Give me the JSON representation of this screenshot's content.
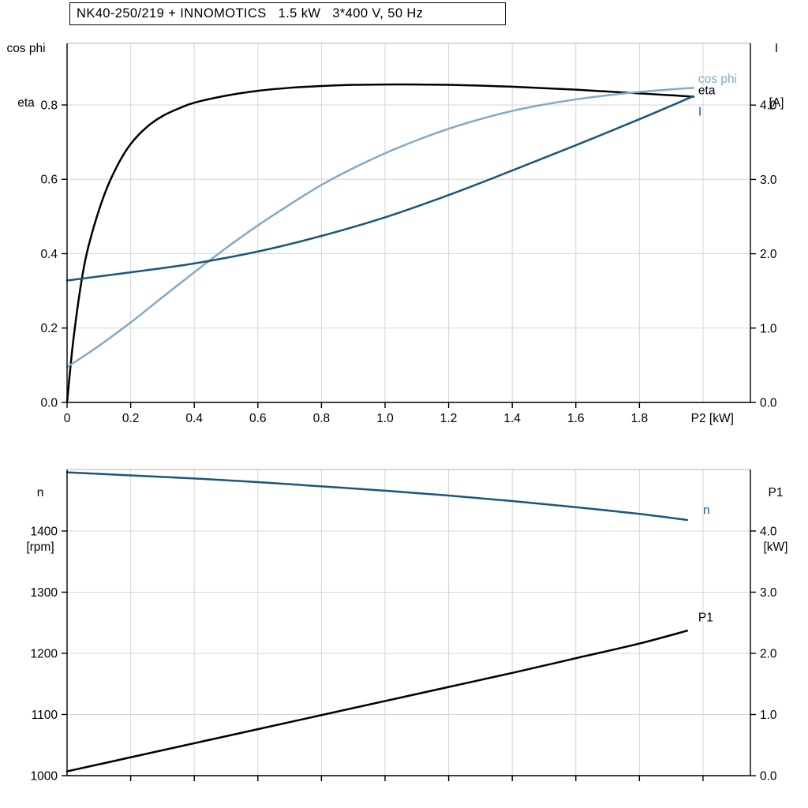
{
  "title_box": {
    "text": "NK40-250/219 + INNOMOTICS   1.5 kW   3*400 V, 50 Hz"
  },
  "axis_corner_labels": {
    "top_left_line1": "cos phi",
    "top_left_line2": "eta",
    "top_right_line1": "I",
    "top_right_line2": "[A]",
    "bottom_left_line1": "n",
    "bottom_left_line2": "[rpm]",
    "bottom_right_line1": "P1",
    "bottom_right_line2": "[kW]"
  },
  "colors": {
    "curve_black": "#000000",
    "curve_dark_blue": "#1a567f",
    "curve_light_blue": "#83a9c7",
    "grid": "#d6d6d6",
    "axis": "#000000",
    "plot_border": "#b3b3b3",
    "background": "#ffffff"
  },
  "chart_data": [
    {
      "id": "motor-electrical",
      "type": "line",
      "title": "NK40-250/219 + INNOMOTICS   1.5 kW   3*400 V, 50 Hz",
      "x_axis": {
        "label": "P2 [kW]",
        "label_at": 1.962,
        "range": [
          0,
          2.149
        ],
        "ticks": [
          0,
          0.2,
          0.4,
          0.6,
          0.8,
          1.0,
          1.2,
          1.4,
          1.6,
          1.8
        ],
        "tick_labels": [
          "0",
          "0.2",
          "0.4",
          "0.6",
          "0.8",
          "1.0",
          "1.2",
          "1.4",
          "1.6",
          "1.8"
        ],
        "grid": [
          0.2,
          0.4,
          0.6,
          0.8,
          1.0,
          1.2,
          1.4,
          1.6,
          1.8,
          2.0
        ]
      },
      "left_axis": {
        "label": "cos phi / eta",
        "range": [
          0,
          0.9655
        ],
        "ticks": [
          0,
          0.2,
          0.4,
          0.6,
          0.8
        ],
        "tick_labels": [
          "0.0",
          "0.2",
          "0.4",
          "0.6",
          "0.8"
        ]
      },
      "right_axis": {
        "label": "I [A]",
        "range": [
          0,
          4.83
        ],
        "ticks": [
          0,
          1,
          2,
          3,
          4
        ],
        "tick_labels": [
          "0.0",
          "1.0",
          "2.0",
          "3.0",
          "4.0"
        ]
      },
      "series": [
        {
          "key": "eta",
          "name": "eta",
          "axis": "left",
          "color_key": "curve_black",
          "label_at": [
            1.985,
            0.829
          ],
          "points": [
            [
              0,
              0
            ],
            [
              0.02,
              0.17
            ],
            [
              0.05,
              0.35
            ],
            [
              0.08,
              0.46
            ],
            [
              0.12,
              0.565
            ],
            [
              0.16,
              0.64
            ],
            [
              0.2,
              0.695
            ],
            [
              0.25,
              0.74
            ],
            [
              0.3,
              0.77
            ],
            [
              0.35,
              0.79
            ],
            [
              0.4,
              0.806
            ],
            [
              0.5,
              0.825
            ],
            [
              0.6,
              0.838
            ],
            [
              0.7,
              0.846
            ],
            [
              0.8,
              0.851
            ],
            [
              0.9,
              0.854
            ],
            [
              1.0,
              0.855
            ],
            [
              1.1,
              0.855
            ],
            [
              1.2,
              0.854
            ],
            [
              1.3,
              0.852
            ],
            [
              1.4,
              0.849
            ],
            [
              1.5,
              0.845
            ],
            [
              1.6,
              0.841
            ],
            [
              1.7,
              0.836
            ],
            [
              1.8,
              0.831
            ],
            [
              1.9,
              0.826
            ],
            [
              1.97,
              0.822
            ]
          ]
        },
        {
          "key": "cos-phi",
          "name": "cos phi",
          "axis": "left",
          "color_key": "curve_light_blue",
          "label_at": [
            1.985,
            0.859
          ],
          "points": [
            [
              0,
              0.095
            ],
            [
              0.1,
              0.152
            ],
            [
              0.2,
              0.215
            ],
            [
              0.3,
              0.283
            ],
            [
              0.4,
              0.35
            ],
            [
              0.5,
              0.415
            ],
            [
              0.6,
              0.476
            ],
            [
              0.7,
              0.532
            ],
            [
              0.8,
              0.585
            ],
            [
              0.9,
              0.63
            ],
            [
              1.0,
              0.67
            ],
            [
              1.1,
              0.705
            ],
            [
              1.2,
              0.736
            ],
            [
              1.3,
              0.762
            ],
            [
              1.4,
              0.784
            ],
            [
              1.5,
              0.801
            ],
            [
              1.6,
              0.815
            ],
            [
              1.7,
              0.826
            ],
            [
              1.8,
              0.835
            ],
            [
              1.9,
              0.842
            ],
            [
              1.97,
              0.846
            ]
          ]
        },
        {
          "key": "current",
          "name": "I",
          "axis": "right",
          "color_key": "curve_dark_blue",
          "label_at": [
            1.985,
            3.86
          ],
          "points": [
            [
              0,
              1.64
            ],
            [
              0.2,
              1.75
            ],
            [
              0.4,
              1.87
            ],
            [
              0.6,
              2.03
            ],
            [
              0.8,
              2.24
            ],
            [
              1.0,
              2.49
            ],
            [
              1.2,
              2.79
            ],
            [
              1.4,
              3.12
            ],
            [
              1.6,
              3.46
            ],
            [
              1.8,
              3.81
            ],
            [
              1.97,
              4.12
            ]
          ]
        }
      ]
    },
    {
      "id": "motor-mechanical",
      "type": "line",
      "title": "",
      "x_axis": {
        "label": "",
        "label_at": 1.962,
        "range": [
          0,
          2.149
        ],
        "ticks": [
          0.2,
          0.4,
          0.6,
          0.8,
          1.0,
          1.2,
          1.4,
          1.6,
          1.8,
          2.0
        ],
        "tick_labels": [
          "",
          "",
          "",
          "",
          "",
          "",
          "",
          "",
          "",
          ""
        ],
        "grid": [
          0.2,
          0.4,
          0.6,
          0.8,
          1.0,
          1.2,
          1.4,
          1.6,
          1.8,
          2.0
        ]
      },
      "left_axis": {
        "label": "n [rpm]",
        "range": [
          1000,
          1500.6
        ],
        "ticks": [
          1000,
          1100,
          1200,
          1300,
          1400
        ],
        "tick_labels": [
          "1000",
          "1100",
          "1200",
          "1300",
          "1400"
        ]
      },
      "right_axis": {
        "label": "P1 [kW]",
        "range": [
          0,
          5.006
        ],
        "ticks": [
          0,
          1,
          2,
          3,
          4
        ],
        "tick_labels": [
          "0.0",
          "1.0",
          "2.0",
          "3.0",
          "4.0"
        ]
      },
      "series": [
        {
          "key": "speed",
          "name": "n",
          "axis": "left",
          "color_key": "curve_dark_blue",
          "label_at": [
            2.0,
            1428
          ],
          "points": [
            [
              0,
              1496
            ],
            [
              0.2,
              1491
            ],
            [
              0.4,
              1486
            ],
            [
              0.6,
              1480
            ],
            [
              0.8,
              1473
            ],
            [
              1.0,
              1466
            ],
            [
              1.2,
              1458
            ],
            [
              1.4,
              1449
            ],
            [
              1.6,
              1439
            ],
            [
              1.8,
              1428
            ],
            [
              1.95,
              1418
            ]
          ]
        },
        {
          "key": "p1",
          "name": "P1",
          "axis": "right",
          "color_key": "curve_black",
          "label_at": [
            1.985,
            2.52
          ],
          "points": [
            [
              0,
              0.07
            ],
            [
              0.2,
              0.3
            ],
            [
              0.4,
              0.53
            ],
            [
              0.6,
              0.76
            ],
            [
              0.8,
              0.99
            ],
            [
              1.0,
              1.22
            ],
            [
              1.2,
              1.45
            ],
            [
              1.4,
              1.68
            ],
            [
              1.6,
              1.92
            ],
            [
              1.8,
              2.16
            ],
            [
              1.95,
              2.37
            ]
          ]
        }
      ]
    }
  ]
}
